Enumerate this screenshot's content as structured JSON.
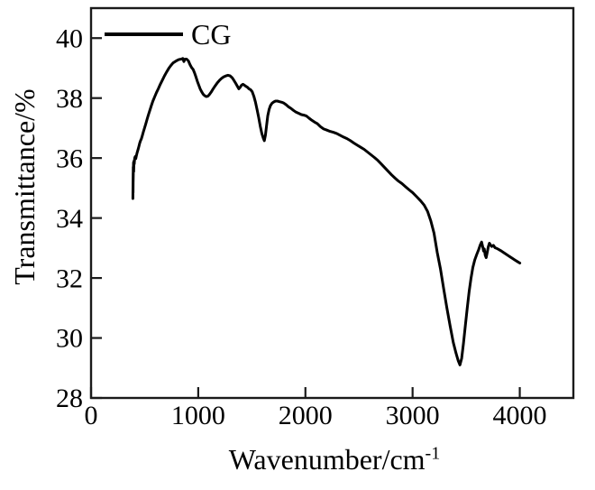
{
  "figure": {
    "background": "#ffffff",
    "frame_color": "#1a1a1a",
    "text_color": "#000000"
  },
  "legend": {
    "label": "CG",
    "position": "top-left-inside"
  },
  "chart_data": {
    "type": "line",
    "title": "",
    "xlabel": "Wavenumber/cm^-1",
    "xlabel_base": "Wavenumber/cm",
    "xlabel_sup": "-1",
    "ylabel": "Transmittance/%",
    "xlim": [
      0,
      4500
    ],
    "ylim": [
      28,
      41
    ],
    "x_ticks": [
      0,
      1000,
      2000,
      3000,
      4000
    ],
    "y_ticks": [
      28,
      30,
      32,
      34,
      36,
      38,
      40
    ],
    "grid": false,
    "legend_position": "top-left-inside",
    "series": [
      {
        "name": "CG",
        "color": "#000000",
        "line_width": 3,
        "points": [
          [
            391,
            35.0
          ],
          [
            390,
            34.65
          ],
          [
            393,
            35.5
          ],
          [
            392,
            34.85
          ],
          [
            394,
            35.7
          ],
          [
            393,
            35.2
          ],
          [
            396,
            35.85
          ],
          [
            398,
            35.55
          ],
          [
            400,
            35.9
          ],
          [
            403,
            35.8
          ],
          [
            407,
            36.0
          ],
          [
            412,
            36.05
          ],
          [
            417,
            35.98
          ],
          [
            423,
            36.08
          ],
          [
            430,
            36.18
          ],
          [
            438,
            36.28
          ],
          [
            446,
            36.38
          ],
          [
            454,
            36.5
          ],
          [
            462,
            36.58
          ],
          [
            470,
            36.65
          ],
          [
            479,
            36.75
          ],
          [
            489,
            36.88
          ],
          [
            499,
            37.0
          ],
          [
            511,
            37.15
          ],
          [
            523,
            37.3
          ],
          [
            536,
            37.45
          ],
          [
            549,
            37.6
          ],
          [
            563,
            37.75
          ],
          [
            577,
            37.9
          ],
          [
            593,
            38.04
          ],
          [
            610,
            38.18
          ],
          [
            628,
            38.32
          ],
          [
            646,
            38.46
          ],
          [
            665,
            38.6
          ],
          [
            685,
            38.74
          ],
          [
            705,
            38.87
          ],
          [
            725,
            38.99
          ],
          [
            745,
            39.09
          ],
          [
            765,
            39.17
          ],
          [
            785,
            39.22
          ],
          [
            805,
            39.26
          ],
          [
            825,
            39.29
          ],
          [
            843,
            39.3
          ],
          [
            856,
            39.32
          ],
          [
            866,
            39.22
          ],
          [
            876,
            39.3
          ],
          [
            892,
            39.3
          ],
          [
            908,
            39.24
          ],
          [
            923,
            39.12
          ],
          [
            938,
            39.02
          ],
          [
            953,
            38.95
          ],
          [
            966,
            38.84
          ],
          [
            979,
            38.7
          ],
          [
            992,
            38.56
          ],
          [
            1005,
            38.43
          ],
          [
            1018,
            38.31
          ],
          [
            1032,
            38.21
          ],
          [
            1046,
            38.13
          ],
          [
            1060,
            38.08
          ],
          [
            1074,
            38.05
          ],
          [
            1088,
            38.06
          ],
          [
            1103,
            38.11
          ],
          [
            1119,
            38.19
          ],
          [
            1138,
            38.3
          ],
          [
            1158,
            38.41
          ],
          [
            1178,
            38.51
          ],
          [
            1198,
            38.59
          ],
          [
            1218,
            38.66
          ],
          [
            1238,
            38.71
          ],
          [
            1258,
            38.74
          ],
          [
            1278,
            38.76
          ],
          [
            1298,
            38.74
          ],
          [
            1316,
            38.68
          ],
          [
            1333,
            38.59
          ],
          [
            1350,
            38.49
          ],
          [
            1366,
            38.39
          ],
          [
            1379,
            38.31
          ],
          [
            1391,
            38.36
          ],
          [
            1404,
            38.43
          ],
          [
            1417,
            38.46
          ],
          [
            1431,
            38.43
          ],
          [
            1445,
            38.39
          ],
          [
            1459,
            38.36
          ],
          [
            1474,
            38.31
          ],
          [
            1489,
            38.28
          ],
          [
            1504,
            38.21
          ],
          [
            1519,
            38.06
          ],
          [
            1534,
            37.86
          ],
          [
            1549,
            37.61
          ],
          [
            1564,
            37.36
          ],
          [
            1579,
            37.06
          ],
          [
            1594,
            36.81
          ],
          [
            1607,
            36.66
          ],
          [
            1617,
            36.58
          ],
          [
            1627,
            36.76
          ],
          [
            1637,
            37.06
          ],
          [
            1649,
            37.41
          ],
          [
            1661,
            37.62
          ],
          [
            1674,
            37.75
          ],
          [
            1689,
            37.83
          ],
          [
            1704,
            37.87
          ],
          [
            1721,
            37.9
          ],
          [
            1739,
            37.9
          ],
          [
            1759,
            37.88
          ],
          [
            1779,
            37.86
          ],
          [
            1799,
            37.83
          ],
          [
            1819,
            37.78
          ],
          [
            1841,
            37.71
          ],
          [
            1864,
            37.66
          ],
          [
            1888,
            37.59
          ],
          [
            1913,
            37.53
          ],
          [
            1938,
            37.49
          ],
          [
            1962,
            37.45
          ],
          [
            1986,
            37.43
          ],
          [
            2010,
            37.4
          ],
          [
            2035,
            37.33
          ],
          [
            2060,
            37.26
          ],
          [
            2085,
            37.2
          ],
          [
            2110,
            37.15
          ],
          [
            2140,
            37.05
          ],
          [
            2170,
            36.97
          ],
          [
            2200,
            36.93
          ],
          [
            2230,
            36.89
          ],
          [
            2260,
            36.86
          ],
          [
            2292,
            36.82
          ],
          [
            2324,
            36.76
          ],
          [
            2356,
            36.7
          ],
          [
            2388,
            36.65
          ],
          [
            2420,
            36.58
          ],
          [
            2452,
            36.5
          ],
          [
            2484,
            36.43
          ],
          [
            2516,
            36.36
          ],
          [
            2548,
            36.29
          ],
          [
            2580,
            36.2
          ],
          [
            2612,
            36.11
          ],
          [
            2644,
            36.02
          ],
          [
            2676,
            35.92
          ],
          [
            2708,
            35.8
          ],
          [
            2740,
            35.68
          ],
          [
            2772,
            35.56
          ],
          [
            2804,
            35.44
          ],
          [
            2836,
            35.33
          ],
          [
            2868,
            35.23
          ],
          [
            2900,
            35.15
          ],
          [
            2932,
            35.05
          ],
          [
            2964,
            34.95
          ],
          [
            3000,
            34.85
          ],
          [
            3038,
            34.71
          ],
          [
            3076,
            34.57
          ],
          [
            3108,
            34.43
          ],
          [
            3140,
            34.22
          ],
          [
            3170,
            33.9
          ],
          [
            3200,
            33.5
          ],
          [
            3230,
            32.85
          ],
          [
            3260,
            32.3
          ],
          [
            3290,
            31.65
          ],
          [
            3320,
            31.0
          ],
          [
            3350,
            30.4
          ],
          [
            3380,
            29.85
          ],
          [
            3405,
            29.5
          ],
          [
            3425,
            29.25
          ],
          [
            3442,
            29.1
          ],
          [
            3458,
            29.32
          ],
          [
            3475,
            29.82
          ],
          [
            3492,
            30.42
          ],
          [
            3510,
            31.0
          ],
          [
            3528,
            31.55
          ],
          [
            3545,
            32.0
          ],
          [
            3562,
            32.35
          ],
          [
            3580,
            32.6
          ],
          [
            3600,
            32.8
          ],
          [
            3617,
            32.95
          ],
          [
            3631,
            33.1
          ],
          [
            3644,
            33.2
          ],
          [
            3654,
            33.05
          ],
          [
            3662,
            32.9
          ],
          [
            3669,
            32.97
          ],
          [
            3677,
            32.76
          ],
          [
            3687,
            32.68
          ],
          [
            3697,
            32.86
          ],
          [
            3707,
            33.05
          ],
          [
            3717,
            33.16
          ],
          [
            3727,
            33.1
          ],
          [
            3739,
            33.05
          ],
          [
            3754,
            33.09
          ],
          [
            3769,
            33.01
          ],
          [
            3789,
            32.98
          ],
          [
            3809,
            32.94
          ],
          [
            3829,
            32.9
          ],
          [
            3854,
            32.84
          ],
          [
            3879,
            32.78
          ],
          [
            3904,
            32.72
          ],
          [
            3929,
            32.66
          ],
          [
            3954,
            32.6
          ],
          [
            3977,
            32.55
          ],
          [
            4000,
            32.5
          ]
        ]
      }
    ]
  }
}
